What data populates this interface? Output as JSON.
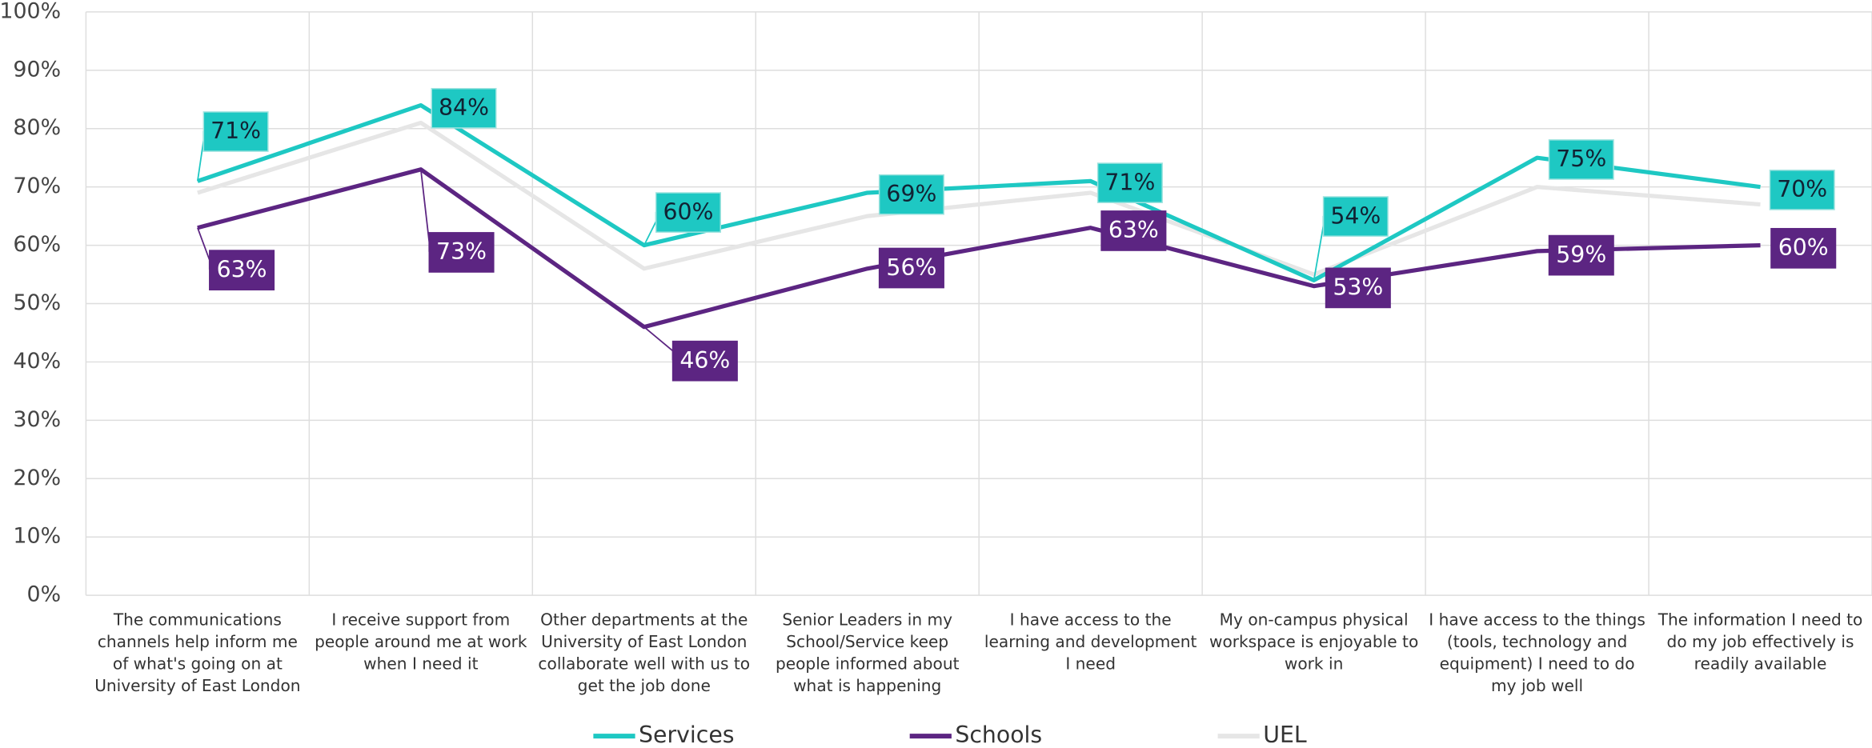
{
  "chart_data": {
    "type": "line",
    "categories": [
      "The communications channels help inform me of what's going on at University of East London",
      "I receive support from people around me at work when I need it",
      "Other departments at the University of East London collaborate well with us to get the job done",
      "Senior Leaders in my School/Service keep people informed about what is happening",
      "I have access to the learning and development I need",
      "My on-campus physical workspace is enjoyable to work in",
      "I have access to the things (tools, technology and equipment) I need to do my job well",
      "The information I need to do my job effectively is readily available"
    ],
    "series": [
      {
        "name": "Services",
        "color": "#1ec8c3",
        "values": [
          71,
          84,
          60,
          69,
          71,
          54,
          75,
          70
        ],
        "value_labels": [
          "71%",
          "84%",
          "60%",
          "69%",
          "71%",
          "54%",
          "75%",
          "70%"
        ]
      },
      {
        "name": "Schools",
        "color": "#5c2582",
        "values": [
          63,
          73,
          46,
          56,
          63,
          53,
          59,
          60
        ],
        "value_labels": [
          "63%",
          "73%",
          "46%",
          "56%",
          "63%",
          "53%",
          "59%",
          "60%"
        ]
      },
      {
        "name": "UEL",
        "color": "#e6e6e6",
        "values": [
          69,
          81,
          56,
          65,
          69,
          55,
          70,
          67
        ]
      }
    ],
    "ylim": [
      0,
      100
    ],
    "yticks": [
      {
        "value": 0,
        "label": "0%"
      },
      {
        "value": 10,
        "label": "10%"
      },
      {
        "value": 20,
        "label": "20%"
      },
      {
        "value": 30,
        "label": "30%"
      },
      {
        "value": 40,
        "label": "40%"
      },
      {
        "value": 50,
        "label": "50%"
      },
      {
        "value": 60,
        "label": "60%"
      },
      {
        "value": 70,
        "label": "70%"
      },
      {
        "value": 80,
        "label": "80%"
      },
      {
        "value": 90,
        "label": "90%"
      },
      {
        "value": 100,
        "label": "100%"
      }
    ],
    "grid": true,
    "legend": "bottom"
  }
}
